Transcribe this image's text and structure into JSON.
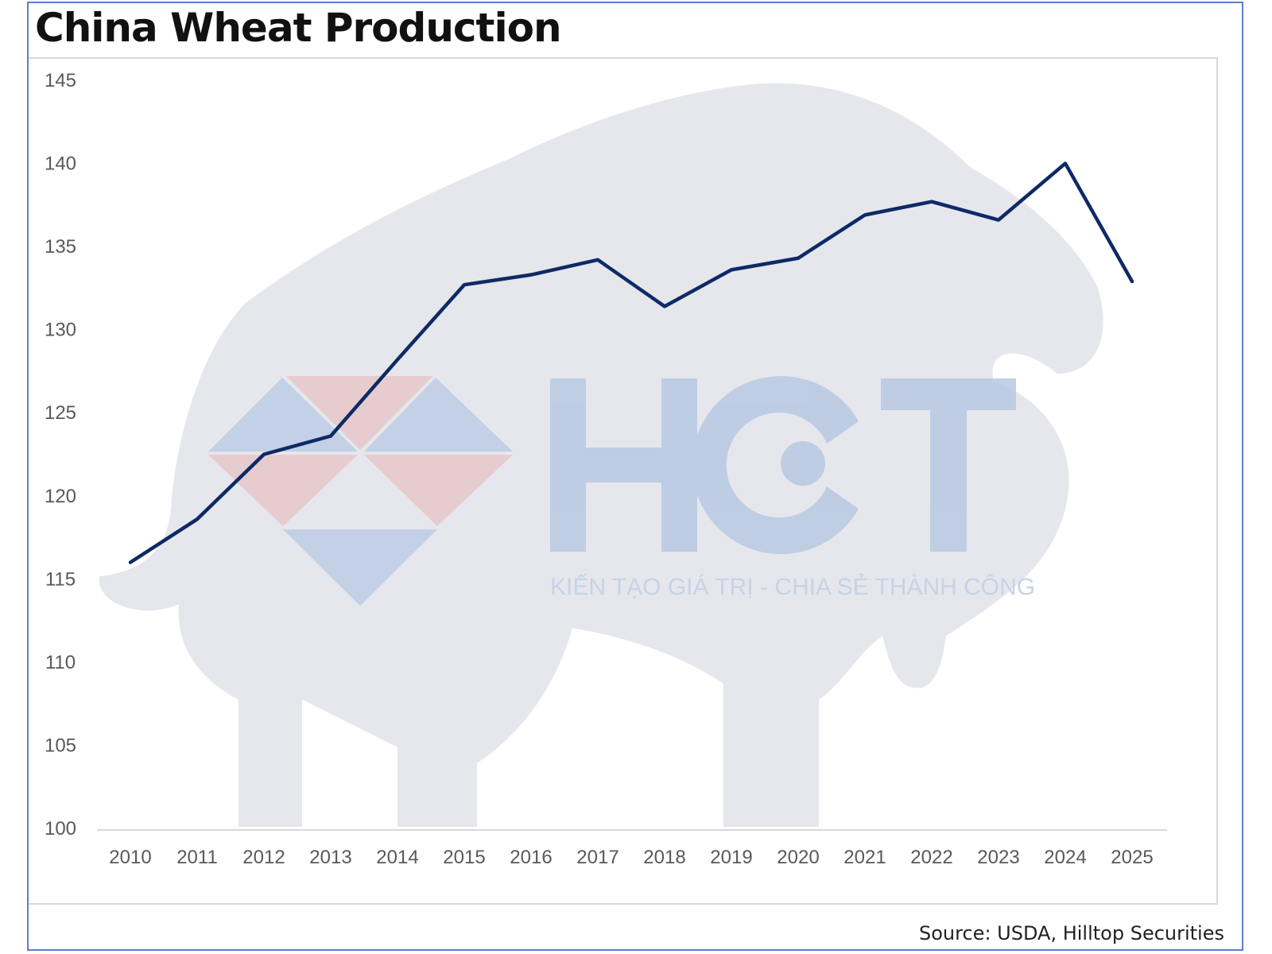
{
  "title": "China Wheat Production",
  "source": "Source: USDA, Hilltop Securities",
  "watermark": {
    "logo_text": "HCT",
    "tagline": "KIẾN TẠO GIÁ TRỊ - CHIA SẺ THÀNH CÔNG"
  },
  "colors": {
    "line": "#0d2a66",
    "frame": "#5b7fc4",
    "axis_text": "#595959",
    "watermark_blue": "#b8c9e3",
    "watermark_red": "#e8c4c6",
    "watermark_silhouette": "#e6e7ec"
  },
  "chart_data": {
    "type": "line",
    "title": "China Wheat Production",
    "categories": [
      "2010",
      "2011",
      "2012",
      "2013",
      "2014",
      "2015",
      "2016",
      "2017",
      "2018",
      "2019",
      "2020",
      "2021",
      "2022",
      "2023",
      "2024",
      "2025"
    ],
    "series": [
      {
        "values": [
          116.0,
          118.6,
          122.5,
          123.6,
          128.2,
          132.7,
          133.3,
          134.2,
          131.4,
          133.6,
          134.3,
          136.9,
          137.7,
          136.6,
          140.0,
          132.9
        ]
      }
    ],
    "ylim": [
      100,
      145
    ],
    "yticks": [
      100,
      105,
      110,
      115,
      120,
      125,
      130,
      135,
      140,
      145
    ],
    "grid": false,
    "legend": "none"
  }
}
